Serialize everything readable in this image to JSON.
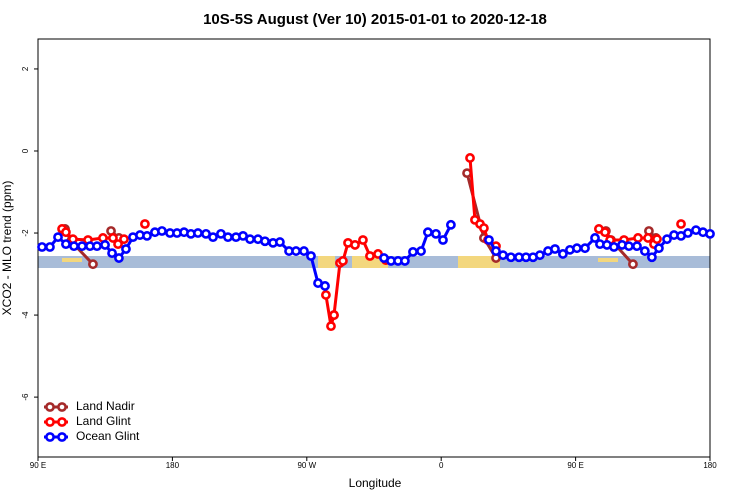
{
  "chart_data": {
    "type": "line",
    "title": "10S-5S August (Ver 10)   2015-01-01 to 2020-12-18",
    "x_label": "Longitude",
    "y_label": "XCO2 - MLO trend (ppm)",
    "xlim": [
      90,
      540
    ],
    "ylim": [
      -7.46,
      2.73
    ],
    "xticks": [
      {
        "value": 90,
        "label": "90 E"
      },
      {
        "value": 180,
        "label": "180"
      },
      {
        "value": 270,
        "label": "90 W"
      },
      {
        "value": 360,
        "label": "0"
      },
      {
        "value": 450,
        "label": "90 E"
      },
      {
        "value": 540,
        "label": "180"
      }
    ],
    "yticks": [
      2,
      0,
      -2,
      -4,
      -6
    ],
    "legend": "bottom-left",
    "series": [
      {
        "name": "Land Nadir",
        "color": "#a52a2a",
        "x": [
          108.1,
          112.1,
          126.8,
          null,
          138.9,
          144.2,
          null,
          288.2,
          null,
          377.3,
          388.6,
          396.7,
          null,
          470.3,
          473.7,
          488.4,
          null,
          499.1,
          503.8
        ],
        "values": [
          -1.9,
          -2.2,
          -2.76,
          null,
          -1.95,
          -2.12,
          null,
          -4.0,
          null,
          -0.54,
          -2.12,
          -2.61,
          null,
          -1.95,
          -2.17,
          -2.76,
          null,
          -1.95,
          -2.12
        ]
      },
      {
        "name": "Land Glint",
        "color": "#ff0000",
        "x": [
          106.1,
          108.7,
          113.4,
          123.5,
          133.5,
          140.2,
          143.6,
          147.6,
          null,
          161.6,
          null,
          282.8,
          286.2,
          288.2,
          292.2,
          294.2,
          297.6,
          302.3,
          307.6,
          312.3,
          317.7,
          323.0,
          null,
          379.3,
          382.6,
          386.0,
          388.6,
          391.3,
          396.7,
          null,
          465.6,
          469.7,
          473.1,
          482.4,
          491.8,
          498.5,
          502.5,
          504.5,
          null,
          520.6
        ],
        "values": [
          -1.9,
          -1.98,
          -2.15,
          -2.17,
          -2.12,
          -2.12,
          -2.27,
          -2.15,
          null,
          -1.78,
          null,
          -3.51,
          -4.27,
          -4.0,
          -2.73,
          -2.68,
          -2.24,
          -2.29,
          -2.17,
          -2.56,
          -2.51,
          -2.66,
          null,
          -0.17,
          -1.68,
          -1.78,
          -1.88,
          -2.17,
          -2.32,
          null,
          -1.9,
          -1.98,
          -2.17,
          -2.17,
          -2.12,
          -2.12,
          -2.27,
          -2.15,
          null,
          -1.78
        ]
      },
      {
        "name": "Ocean Glint",
        "color": "#0000ff",
        "x": [
          92.7,
          98.0,
          103.4,
          108.7,
          114.1,
          119.5,
          124.8,
          129.5,
          134.9,
          139.6,
          144.2,
          148.9,
          153.6,
          158.3,
          163.0,
          168.3,
          173.0,
          178.4,
          183.1,
          187.8,
          192.4,
          197.1,
          202.5,
          207.2,
          212.5,
          217.2,
          222.6,
          227.3,
          232.0,
          237.3,
          242.0,
          247.4,
          252.0,
          258.1,
          262.8,
          268.1,
          272.8,
          277.5,
          282.2,
          null,
          321.7,
          326.4,
          331.1,
          335.7,
          341.1,
          346.5,
          351.1,
          356.5,
          361.2,
          366.5,
          null,
          392.0,
          396.7,
          401.4,
          406.7,
          412.1,
          416.8,
          421.5,
          426.1,
          431.5,
          436.2,
          441.5,
          446.2,
          450.9,
          456.3,
          463.0,
          466.3,
          471.0,
          475.7,
          481.1,
          485.7,
          491.1,
          496.4,
          501.1,
          505.8,
          511.2,
          515.9,
          520.6,
          525.2,
          530.6,
          535.3,
          540.0
        ],
        "values": [
          -2.34,
          -2.34,
          -2.1,
          -2.27,
          -2.32,
          -2.32,
          -2.32,
          -2.32,
          -2.29,
          -2.49,
          -2.61,
          -2.39,
          -2.1,
          -2.05,
          -2.07,
          -1.98,
          -1.95,
          -2.0,
          -2.0,
          -1.98,
          -2.02,
          -2.0,
          -2.02,
          -2.1,
          -2.02,
          -2.1,
          -2.1,
          -2.07,
          -2.15,
          -2.15,
          -2.2,
          -2.24,
          -2.22,
          -2.44,
          -2.44,
          -2.44,
          -2.56,
          -3.22,
          -3.29,
          null,
          -2.61,
          -2.68,
          -2.68,
          -2.68,
          -2.46,
          -2.44,
          -1.98,
          -2.02,
          -2.17,
          -1.8,
          null,
          -2.17,
          -2.44,
          -2.54,
          -2.59,
          -2.59,
          -2.59,
          -2.59,
          -2.54,
          -2.44,
          -2.39,
          -2.51,
          -2.41,
          -2.37,
          -2.37,
          -2.12,
          -2.27,
          -2.29,
          -2.34,
          -2.29,
          -2.32,
          -2.32,
          -2.44,
          -2.59,
          -2.37,
          -2.15,
          -2.05,
          -2.07,
          -2.0,
          -1.93,
          -1.98,
          -2.02
        ]
      }
    ]
  }
}
